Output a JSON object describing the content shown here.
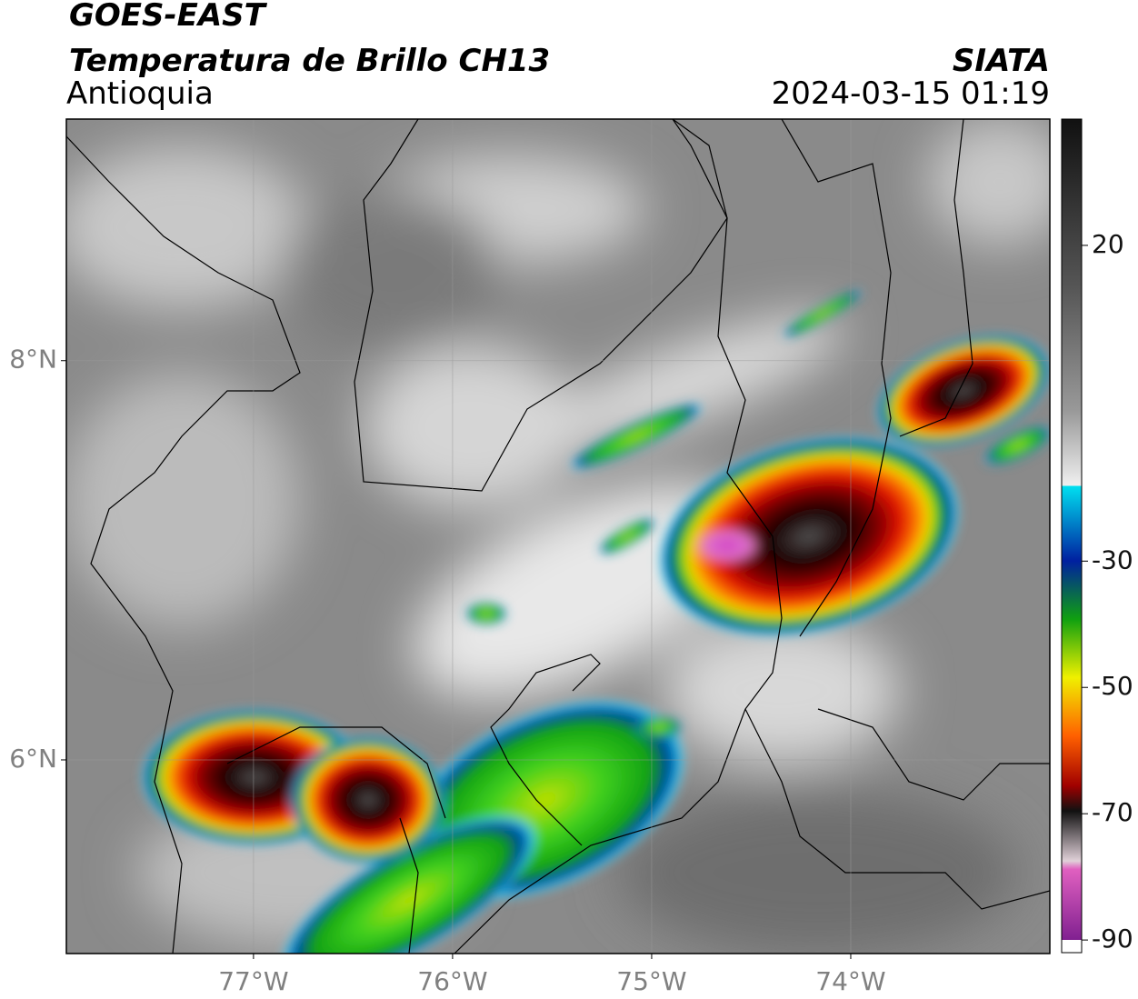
{
  "header": {
    "title": "GOES-EAST",
    "subtitle": "Temperatura de Brillo CH13",
    "region": "Antioquia",
    "source": "SIATA",
    "timestamp": "2024-03-15 01:19"
  },
  "map": {
    "xlim": [
      -77.94,
      -73.0
    ],
    "ylim": [
      5.03,
      9.21
    ],
    "xticks": [
      {
        "value": -77,
        "label": "77°W"
      },
      {
        "value": -76,
        "label": "76°W"
      },
      {
        "value": -75,
        "label": "75°W"
      },
      {
        "value": -74,
        "label": "74°W"
      }
    ],
    "yticks": [
      {
        "value": 8,
        "label": "8°N"
      },
      {
        "value": 6,
        "label": "6°N"
      }
    ],
    "grid": true
  },
  "colorbar": {
    "lim": [
      -92,
      40
    ],
    "ticks": [
      20,
      -30,
      -50,
      -70,
      -90
    ]
  }
}
